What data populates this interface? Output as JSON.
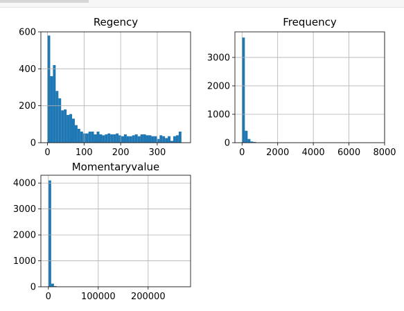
{
  "chart_data": [
    {
      "type": "bar",
      "title": "Regency",
      "bar_color": "#1f77b4",
      "grid": true,
      "xlim": [
        -18,
        391
      ],
      "ylim": [
        0,
        600
      ],
      "xticks": [
        0,
        100,
        200,
        300
      ],
      "yticks": [
        0,
        200,
        400,
        600
      ],
      "bin_start": 0,
      "bin_width": 7.47,
      "values": [
        580,
        360,
        420,
        280,
        240,
        175,
        180,
        150,
        155,
        130,
        95,
        75,
        60,
        50,
        50,
        60,
        60,
        45,
        60,
        45,
        40,
        45,
        50,
        45,
        45,
        50,
        40,
        35,
        45,
        35,
        35,
        40,
        45,
        35,
        45,
        45,
        40,
        40,
        35,
        35,
        20,
        40,
        35,
        25,
        35,
        10,
        35,
        40,
        60
      ]
    },
    {
      "type": "bar",
      "title": "Frequency",
      "bar_color": "#1f77b4",
      "grid": true,
      "xlim": [
        -400,
        8000
      ],
      "ylim": [
        0,
        3900
      ],
      "xticks": [
        0,
        2000,
        4000,
        6000,
        8000
      ],
      "yticks": [
        0,
        1000,
        2000,
        3000
      ],
      "bin_start": 0,
      "bin_width": 157,
      "values": [
        3700,
        420,
        130,
        40,
        25,
        10,
        5,
        3,
        2,
        2
      ]
    },
    {
      "type": "bar",
      "title": "Momentaryvalue",
      "bar_color": "#1f77b4",
      "grid": true,
      "xlim": [
        -15000,
        285000
      ],
      "ylim": [
        0,
        4300
      ],
      "xticks": [
        0,
        100000,
        200000
      ],
      "yticks": [
        0,
        1000,
        2000,
        3000,
        4000
      ],
      "bin_start": 0,
      "bin_width": 5600,
      "values": [
        4100,
        120,
        25,
        10,
        5
      ]
    }
  ]
}
